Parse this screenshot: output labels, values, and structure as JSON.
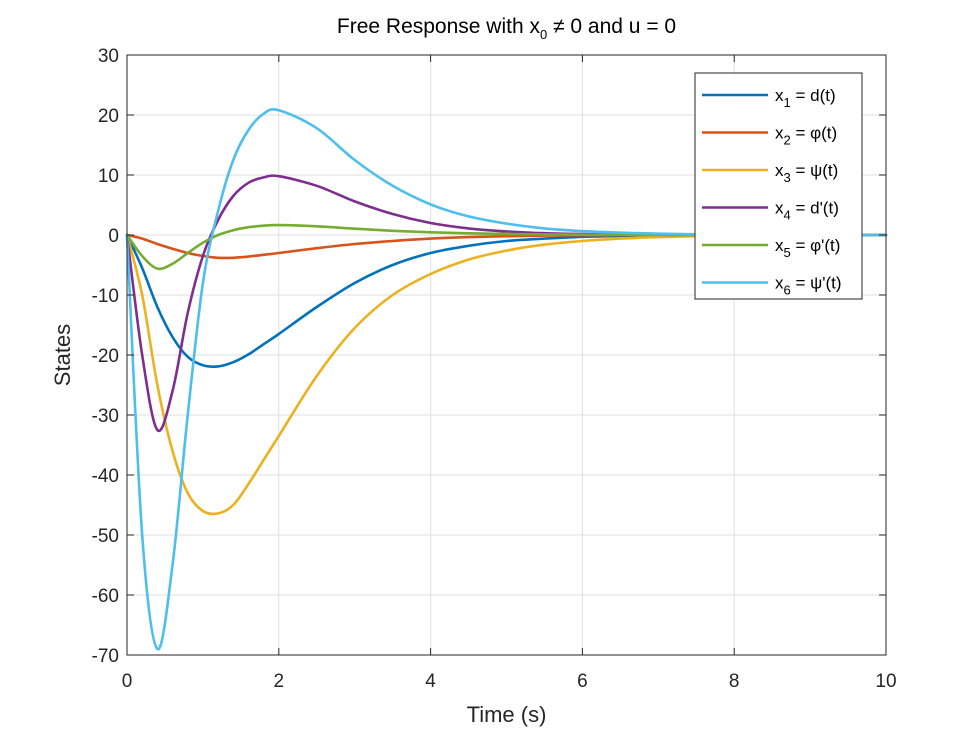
{
  "chart_data": {
    "type": "line",
    "title": {
      "prefix": "Free Response with x",
      "sub": "0",
      "suffix": " ≠ 0 and u = 0"
    },
    "xlabel": "Time (s)",
    "ylabel": "States",
    "xlim": [
      0,
      10
    ],
    "ylim": [
      -70,
      30
    ],
    "xticks": [
      0,
      2,
      4,
      6,
      8,
      10
    ],
    "yticks": [
      -70,
      -60,
      -50,
      -40,
      -30,
      -20,
      -10,
      0,
      10,
      20,
      30
    ],
    "grid": true,
    "legend": "top-right",
    "x": [
      0,
      0.2,
      0.4,
      0.6,
      0.8,
      1.0,
      1.2,
      1.4,
      1.6,
      1.8,
      2.0,
      2.5,
      3.0,
      3.5,
      4.0,
      4.5,
      5.0,
      5.5,
      6.0,
      6.5,
      7.0,
      7.5,
      8.0,
      8.5,
      9.0,
      9.5,
      10.0
    ],
    "series": [
      {
        "name_main": "x",
        "name_sub": "1",
        "name_rest": " = d(t)",
        "color": "#0072BD",
        "values": [
          0,
          -5.5,
          -12,
          -17,
          -20.3,
          -21.7,
          -21.9,
          -21.2,
          -19.9,
          -18.2,
          -16.5,
          -12.0,
          -8.0,
          -5.0,
          -3.0,
          -1.8,
          -1.0,
          -0.6,
          -0.3,
          -0.15,
          -0.08,
          -0.04,
          -0.02,
          -0.01,
          0,
          0,
          0
        ]
      },
      {
        "name_main": "x",
        "name_sub": "2",
        "name_rest": " = φ(t)",
        "color": "#D95319",
        "values": [
          0,
          -0.6,
          -1.5,
          -2.3,
          -3.0,
          -3.5,
          -3.8,
          -3.8,
          -3.6,
          -3.3,
          -3.0,
          -2.2,
          -1.5,
          -1.0,
          -0.6,
          -0.35,
          -0.2,
          -0.1,
          -0.05,
          -0.02,
          -0.01,
          0,
          0,
          0,
          0,
          0,
          0
        ]
      },
      {
        "name_main": "x",
        "name_sub": "3",
        "name_rest": " = ψ(t)",
        "color": "#EDB120",
        "values": [
          0,
          -10,
          -25,
          -36,
          -43,
          -46,
          -46.4,
          -45,
          -41.5,
          -37.5,
          -33.5,
          -23.5,
          -15.5,
          -10.0,
          -6.5,
          -4.1,
          -2.6,
          -1.6,
          -1.0,
          -0.6,
          -0.35,
          -0.2,
          -0.1,
          -0.05,
          0,
          0,
          0
        ]
      },
      {
        "name_main": "x",
        "name_sub": "4",
        "name_rest": " = d'(t)",
        "color": "#7E2F8E",
        "values": [
          0,
          -20,
          -32.5,
          -26,
          -13,
          -3.5,
          2.5,
          6.5,
          8.7,
          9.6,
          9.8,
          8.2,
          5.6,
          3.5,
          2.0,
          1.1,
          0.6,
          0.3,
          0.15,
          0.08,
          0.04,
          0.02,
          0.01,
          0,
          0,
          0,
          0
        ]
      },
      {
        "name_main": "x",
        "name_sub": "5",
        "name_rest": " = φ'(t)",
        "color": "#77AC30",
        "values": [
          0,
          -3.5,
          -5.6,
          -4.8,
          -3.0,
          -1.3,
          0.0,
          0.8,
          1.3,
          1.55,
          1.65,
          1.45,
          1.05,
          0.7,
          0.45,
          0.28,
          0.17,
          0.1,
          0.05,
          0.02,
          0.01,
          0,
          0,
          0,
          0,
          0,
          0
        ]
      },
      {
        "name_main": "x",
        "name_sub": "6",
        "name_rest": " = ψ'(t)",
        "color": "#4DBEEE",
        "values": [
          0,
          -50,
          -69,
          -55,
          -30,
          -8,
          4,
          12.5,
          17.5,
          20.2,
          20.8,
          17.8,
          12.5,
          8.2,
          5.1,
          3.1,
          1.9,
          1.1,
          0.65,
          0.38,
          0.22,
          0.12,
          0.07,
          0.04,
          0.02,
          0.01,
          0
        ]
      }
    ]
  }
}
